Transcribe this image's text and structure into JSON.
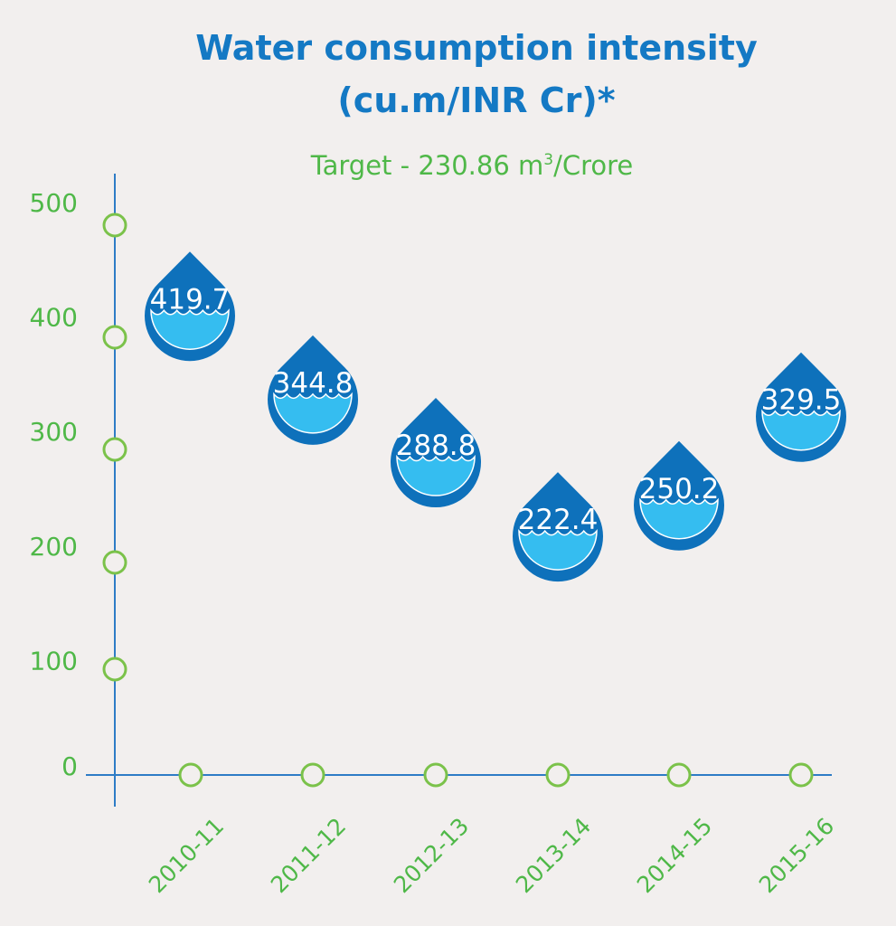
{
  "colors": {
    "background": "#f2efee",
    "title": "#1479c4",
    "green": "#4fb848",
    "marker": "#7bc24a",
    "axis": "#2e7cc6",
    "drop_dark": "#0e71bb",
    "drop_light": "#35bdf0",
    "label": "#ffffff"
  },
  "icons": {
    "marker": "circle-marker-icon",
    "value_shape": "water-drop-icon"
  },
  "chart_data": {
    "type": "scatter",
    "title_lines": [
      "Water consumption intensity",
      "(cu.m/INR Cr)*"
    ],
    "subtitle": {
      "prefix": "Target - 230.86 m",
      "superscript": "3",
      "suffix": "/Crore"
    },
    "target": 230.86,
    "categories": [
      "2010-11",
      "2011-12",
      "2012-13",
      "2013-14",
      "2014-15",
      "2015-16"
    ],
    "values": [
      419.7,
      344.8,
      288.8,
      222.4,
      250.2,
      329.5
    ],
    "value_labels": [
      "419.7",
      "344.8",
      "288.8",
      "222.4",
      "250.2",
      "329.5"
    ],
    "y_ticks": [
      0,
      100,
      200,
      300,
      400,
      500
    ],
    "ylim": [
      0,
      500
    ],
    "grid": false,
    "legend": "none"
  }
}
